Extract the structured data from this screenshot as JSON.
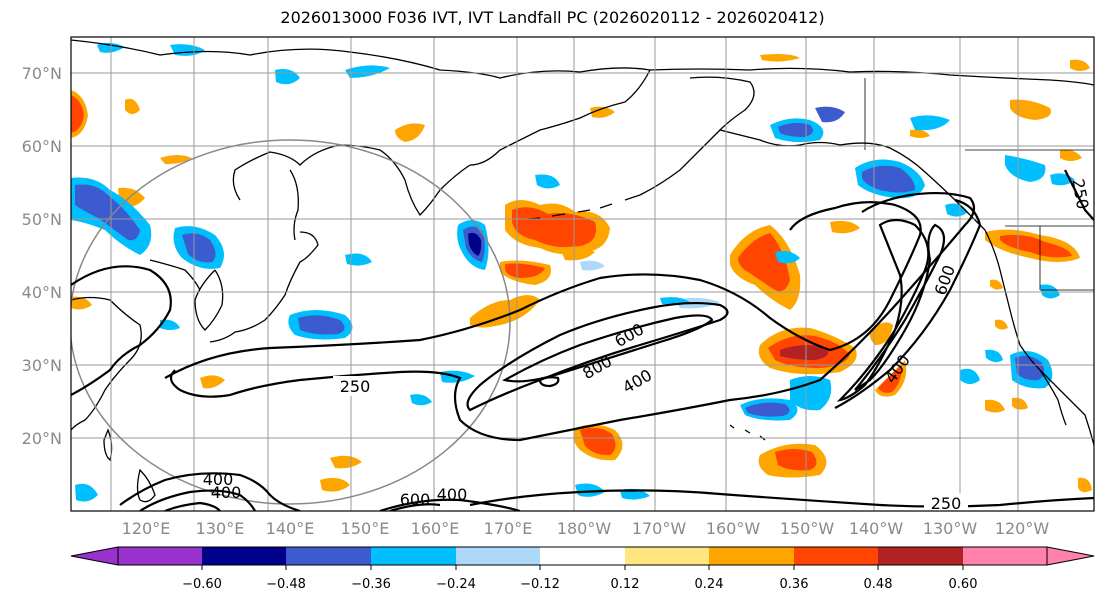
{
  "title": "2026013000 F036 IVT, IVT Landfall PC (2026020112 - 2026020412)",
  "map": {
    "lat_labels": [
      "70°N",
      "60°N",
      "50°N",
      "40°N",
      "30°N",
      "20°N"
    ],
    "lon_labels": [
      "120°E",
      "130°E",
      "140°E",
      "150°E",
      "160°E",
      "170°E",
      "180°W",
      "170°W",
      "160°W",
      "150°W",
      "140°W",
      "130°W",
      "120°W"
    ],
    "contour_labels": [
      {
        "text": "250",
        "name": "contour-label-250-mid"
      },
      {
        "text": "250",
        "name": "contour-label-250-south"
      },
      {
        "text": "250",
        "name": "contour-label-250-east"
      },
      {
        "text": "600",
        "name": "contour-label-600-central"
      },
      {
        "text": "800",
        "name": "contour-label-800-central"
      },
      {
        "text": "400",
        "name": "contour-label-400-central"
      },
      {
        "text": "600",
        "name": "contour-label-600-east"
      },
      {
        "text": "400",
        "name": "contour-label-400-east"
      },
      {
        "text": "400",
        "name": "contour-label-400-sw-a"
      },
      {
        "text": "400",
        "name": "contour-label-400-sw-b"
      },
      {
        "text": "600",
        "name": "contour-label-600-south"
      },
      {
        "text": "400",
        "name": "contour-label-400-south"
      }
    ]
  },
  "colorbar": {
    "tick_labels": [
      "−0.60",
      "−0.48",
      "−0.36",
      "−0.24",
      "−0.12",
      "0.12",
      "0.24",
      "0.36",
      "0.48",
      "0.60"
    ],
    "colors": [
      "#9932cc",
      "#00008b",
      "#3b5bcf",
      "#00bfff",
      "#add8f7",
      "#ffffff",
      "#ffe680",
      "#ffa500",
      "#ff4500",
      "#b22222",
      "#ff82ab"
    ]
  },
  "colors": {
    "land_line": "#000000",
    "grid": "#999999",
    "circle": "#888888"
  }
}
